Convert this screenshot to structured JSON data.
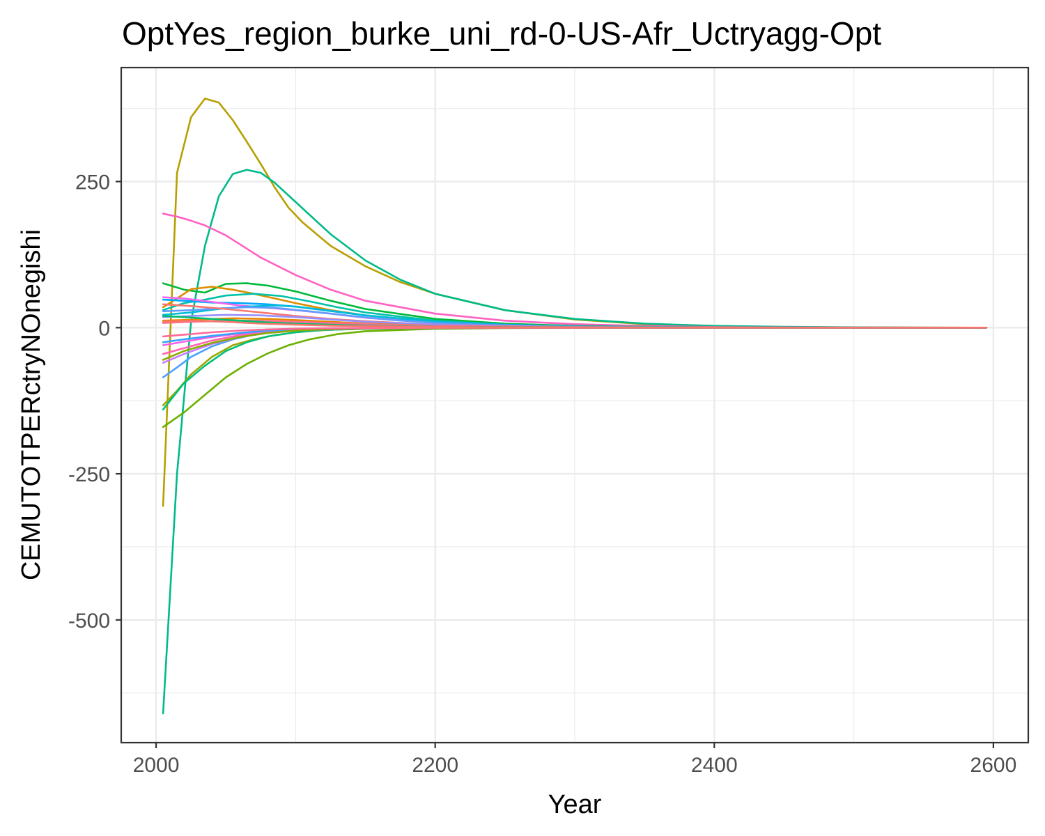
{
  "chart_data": {
    "type": "line",
    "title": "OptYes_region_burke_uni_rd-0-US-Afr_Uctryagg-Opt",
    "xlabel": "Year",
    "ylabel": "CEMUTOTPERctryNOnegishi",
    "xlim": [
      1975,
      2625
    ],
    "ylim": [
      -710,
      445
    ],
    "x_ticks": [
      2000,
      2200,
      2400,
      2600
    ],
    "x_tick_labels": [
      "2000",
      "2200",
      "2400",
      "2600"
    ],
    "y_ticks": [
      -500,
      -250,
      0,
      250
    ],
    "y_tick_labels": [
      "-500",
      "-250",
      "0",
      "250"
    ],
    "grid": true,
    "legend": "none",
    "panel_background": "#ffffff",
    "grid_color": "#ebebeb",
    "series": [
      {
        "color": "#B79F00",
        "x": [
          2005,
          2015,
          2025,
          2035,
          2045,
          2055,
          2065,
          2075,
          2085,
          2095,
          2105,
          2125,
          2150,
          2175,
          2200,
          2250,
          2300,
          2350,
          2400,
          2450,
          2500,
          2550,
          2595
        ],
        "y": [
          -305,
          265,
          360,
          392,
          385,
          355,
          318,
          280,
          240,
          205,
          180,
          140,
          105,
          78,
          58,
          30,
          14,
          6,
          3,
          1,
          0.5,
          0.2,
          0
        ]
      },
      {
        "color": "#00BA89",
        "x": [
          2005,
          2015,
          2025,
          2035,
          2045,
          2055,
          2065,
          2075,
          2085,
          2100,
          2125,
          2150,
          2175,
          2200,
          2250,
          2300,
          2350,
          2400,
          2450,
          2500,
          2550,
          2595
        ],
        "y": [
          -660,
          -250,
          10,
          140,
          225,
          263,
          270,
          265,
          248,
          215,
          160,
          115,
          82,
          58,
          30,
          15,
          7,
          3,
          1.5,
          0.6,
          0.2,
          0
        ]
      },
      {
        "color": "#FF61C3",
        "x": [
          2005,
          2015,
          2025,
          2035,
          2050,
          2075,
          2100,
          2125,
          2150,
          2200,
          2250,
          2300,
          2350,
          2400,
          2500,
          2595
        ],
        "y": [
          195,
          190,
          183,
          175,
          158,
          120,
          90,
          65,
          46,
          24,
          12,
          6,
          3,
          1,
          0.2,
          0
        ]
      },
      {
        "color": "#00BA38",
        "x": [
          2005,
          2020,
          2035,
          2050,
          2065,
          2080,
          2100,
          2125,
          2150,
          2200,
          2250,
          2300,
          2350,
          2400,
          2500,
          2595
        ],
        "y": [
          76,
          65,
          60,
          75,
          76,
          72,
          62,
          46,
          32,
          15,
          7,
          3,
          1.5,
          0.6,
          0.1,
          0
        ]
      },
      {
        "color": "#DB8E00",
        "x": [
          2005,
          2015,
          2025,
          2040,
          2055,
          2070,
          2085,
          2100,
          2125,
          2150,
          2200,
          2250,
          2300,
          2400,
          2500,
          2595
        ],
        "y": [
          35,
          50,
          66,
          70,
          65,
          58,
          50,
          42,
          30,
          21,
          10,
          5,
          2,
          0.5,
          0.1,
          0
        ]
      },
      {
        "color": "#00C1A7",
        "x": [
          2005,
          2020,
          2035,
          2050,
          2070,
          2090,
          2110,
          2130,
          2150,
          2200,
          2250,
          2300,
          2400,
          2500,
          2595
        ],
        "y": [
          30,
          42,
          48,
          55,
          58,
          54,
          45,
          35,
          26,
          12,
          5,
          2,
          0.5,
          0.1,
          0
        ]
      },
      {
        "color": "#00A6FF",
        "x": [
          2005,
          2020,
          2040,
          2060,
          2080,
          2100,
          2120,
          2150,
          2200,
          2250,
          2300,
          2400,
          2500,
          2595
        ],
        "y": [
          48,
          46,
          43,
          42,
          40,
          36,
          30,
          21,
          10,
          5,
          2,
          0.4,
          0.1,
          0
        ]
      },
      {
        "color": "#EF67EB",
        "x": [
          2005,
          2020,
          2040,
          2060,
          2080,
          2100,
          2125,
          2150,
          2200,
          2250,
          2300,
          2400,
          2500,
          2595
        ],
        "y": [
          52,
          50,
          44,
          38,
          34,
          30,
          24,
          17,
          8,
          4,
          1.5,
          0.3,
          0.1,
          0
        ]
      },
      {
        "color": "#00BCD8",
        "x": [
          2005,
          2025,
          2045,
          2065,
          2085,
          2100,
          2125,
          2150,
          2200,
          2250,
          2300,
          2400,
          2500,
          2595
        ],
        "y": [
          22,
          26,
          32,
          36,
          38,
          36,
          29,
          21,
          10,
          4,
          2,
          0.4,
          0.1,
          0
        ]
      },
      {
        "color": "#619CFF",
        "x": [
          2005,
          2025,
          2045,
          2065,
          2085,
          2110,
          2140,
          2170,
          2200,
          2250,
          2300,
          2400,
          2500,
          2595
        ],
        "y": [
          28,
          30,
          33,
          35,
          34,
          28,
          20,
          13,
          8,
          4,
          1.5,
          0.3,
          0.1,
          0
        ]
      },
      {
        "color": "#F8766D",
        "x": [
          2005,
          2025,
          2050,
          2075,
          2100,
          2125,
          2150,
          2200,
          2250,
          2300,
          2400,
          2500,
          2595
        ],
        "y": [
          40,
          37,
          32,
          26,
          20,
          15,
          11,
          5,
          2.5,
          1,
          0.3,
          0.1,
          0
        ]
      },
      {
        "color": "#9590FF",
        "x": [
          2005,
          2025,
          2050,
          2075,
          2100,
          2125,
          2150,
          2200,
          2250,
          2300,
          2400,
          2500,
          2595
        ],
        "y": [
          18,
          20,
          22,
          21,
          18,
          14,
          10,
          5,
          2,
          1,
          0.2,
          0.05,
          0
        ]
      },
      {
        "color": "#E58700",
        "x": [
          2005,
          2030,
          2055,
          2080,
          2100,
          2125,
          2150,
          2200,
          2250,
          2300,
          2400,
          2500,
          2595
        ],
        "y": [
          12,
          14,
          16,
          15,
          13,
          10,
          7,
          3,
          1.5,
          0.6,
          0.2,
          0.05,
          0
        ]
      },
      {
        "color": "#FF6C91",
        "x": [
          2005,
          2025,
          2050,
          2075,
          2100,
          2125,
          2150,
          2200,
          2250,
          2300,
          2400,
          2500,
          2595
        ],
        "y": [
          8,
          10,
          12,
          12,
          10,
          8,
          6,
          3,
          1.5,
          0.6,
          0.2,
          0.05,
          0
        ]
      },
      {
        "color": "#6BB100",
        "x": [
          2005,
          2020,
          2035,
          2050,
          2065,
          2080,
          2095,
          2110,
          2130,
          2150,
          2200,
          2250,
          2300,
          2400,
          2500,
          2595
        ],
        "y": [
          -170,
          -145,
          -115,
          -85,
          -62,
          -44,
          -30,
          -20,
          -11,
          -6,
          -2,
          -0.8,
          -0.3,
          -0.1,
          0,
          0
        ]
      },
      {
        "color": "#9DA700",
        "x": [
          2005,
          2015,
          2025,
          2040,
          2055,
          2070,
          2085,
          2100,
          2115,
          2130,
          2150,
          2200,
          2250,
          2300,
          2400,
          2500,
          2595
        ],
        "y": [
          -133,
          -108,
          -80,
          -50,
          -30,
          -20,
          -13,
          -8,
          -5,
          -3,
          -2,
          -0.8,
          -0.3,
          -0.1,
          0,
          0,
          0
        ]
      },
      {
        "color": "#00BF7D",
        "x": [
          2005,
          2020,
          2035,
          2050,
          2065,
          2080,
          2100,
          2120,
          2150,
          2200,
          2250,
          2300,
          2400,
          2500,
          2595
        ],
        "y": [
          -140,
          -95,
          -65,
          -40,
          -25,
          -15,
          -8,
          -4,
          -2,
          -0.8,
          -0.3,
          -0.1,
          0,
          0,
          0
        ]
      },
      {
        "color": "#4AA1FF",
        "x": [
          2005,
          2015,
          2025,
          2040,
          2055,
          2070,
          2090,
          2110,
          2130,
          2150,
          2200,
          2300,
          2400,
          2595
        ],
        "y": [
          -85,
          -68,
          -50,
          -32,
          -20,
          -12,
          -6,
          -3,
          -1.5,
          -0.8,
          -0.3,
          -0.05,
          0,
          0
        ]
      },
      {
        "color": "#C77CFF",
        "x": [
          2005,
          2020,
          2040,
          2060,
          2080,
          2100,
          2120,
          2150,
          2200,
          2300,
          2400,
          2595
        ],
        "y": [
          -60,
          -45,
          -28,
          -16,
          -9,
          -5,
          -3,
          -1.5,
          -0.5,
          -0.1,
          0,
          0
        ]
      },
      {
        "color": "#FF64B0",
        "x": [
          2005,
          2020,
          2040,
          2060,
          2080,
          2100,
          2125,
          2150,
          2200,
          2300,
          2400,
          2595
        ],
        "y": [
          -45,
          -35,
          -22,
          -13,
          -8,
          -4,
          -2,
          -1,
          -0.4,
          -0.1,
          0,
          0
        ]
      },
      {
        "color": "#F564E3",
        "x": [
          2005,
          2020,
          2040,
          2060,
          2080,
          2100,
          2125,
          2150,
          2200,
          2300,
          2400,
          2595
        ],
        "y": [
          -30,
          -24,
          -16,
          -10,
          -6,
          -3,
          -1.5,
          -0.8,
          -0.3,
          -0.05,
          0,
          0
        ]
      },
      {
        "color": "#35A2FF",
        "x": [
          2005,
          2020,
          2040,
          2060,
          2080,
          2100,
          2125,
          2150,
          2200,
          2300,
          2400,
          2595
        ],
        "y": [
          -25,
          -20,
          -14,
          -9,
          -5,
          -3,
          -1.5,
          -0.8,
          -0.3,
          -0.05,
          0,
          0
        ]
      },
      {
        "color": "#8AAB00",
        "x": [
          2005,
          2020,
          2040,
          2060,
          2080,
          2100,
          2125,
          2150,
          2200,
          2300,
          2400,
          2595
        ],
        "y": [
          -55,
          -40,
          -26,
          -16,
          -9,
          -5,
          -2.5,
          -1.2,
          -0.4,
          -0.1,
          0,
          0
        ]
      },
      {
        "color": "#00BF6F",
        "x": [
          2005,
          2020,
          2040,
          2060,
          2080,
          2100,
          2125,
          2150,
          2200,
          2300,
          2400,
          2595
        ],
        "y": [
          20,
          18,
          15,
          12,
          9,
          7,
          5,
          3.5,
          1.5,
          0.4,
          0.1,
          0
        ]
      },
      {
        "color": "#FF6A98",
        "x": [
          2005,
          2020,
          2040,
          2060,
          2080,
          2100,
          2125,
          2150,
          2200,
          2300,
          2400,
          2595
        ],
        "y": [
          -15,
          -12,
          -8,
          -5,
          -3,
          -1.8,
          -1,
          -0.5,
          -0.2,
          -0.05,
          0,
          0
        ]
      },
      {
        "color": "#F8766D",
        "x": [
          2005,
          2025,
          2050,
          2075,
          2100,
          2125,
          2150,
          2200,
          2250,
          2300,
          2400,
          2500,
          2595
        ],
        "y": [
          10,
          12,
          10,
          7,
          5,
          3.5,
          2.5,
          1.2,
          0.6,
          0.3,
          0.1,
          0.02,
          0
        ]
      }
    ]
  }
}
